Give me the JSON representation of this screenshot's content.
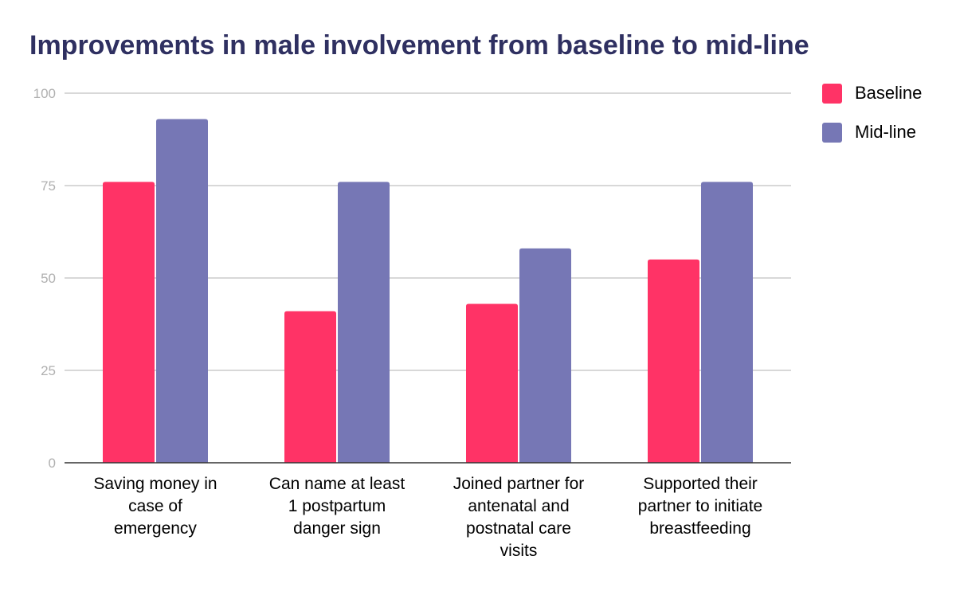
{
  "chart_data": {
    "type": "bar",
    "title": "Improvements in male involvement from baseline to mid-line",
    "categories": [
      [
        "Saving money in",
        "case of",
        "emergency"
      ],
      [
        "Can name at least",
        "1 postpartum",
        "danger sign"
      ],
      [
        "Joined partner for",
        "antenatal and",
        "postnatal care",
        "visits"
      ],
      [
        "Supported their",
        "partner to initiate",
        "breastfeeding"
      ]
    ],
    "series": [
      {
        "name": "Baseline",
        "color": "#ff3366",
        "values": [
          76,
          41,
          43,
          55
        ]
      },
      {
        "name": "Mid-line",
        "color": "#7677b5",
        "values": [
          93,
          76,
          58,
          76
        ]
      }
    ],
    "ylim": [
      0,
      100
    ],
    "yticks": [
      0,
      25,
      50,
      75,
      100
    ],
    "grid": true,
    "legend_position": "right"
  }
}
